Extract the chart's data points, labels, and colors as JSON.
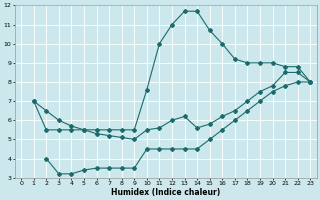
{
  "xlabel": "Humidex (Indice chaleur)",
  "xlim": [
    -0.5,
    23.5
  ],
  "ylim": [
    3,
    12
  ],
  "xticks": [
    0,
    1,
    2,
    3,
    4,
    5,
    6,
    7,
    8,
    9,
    10,
    11,
    12,
    13,
    14,
    15,
    16,
    17,
    18,
    19,
    20,
    21,
    22,
    23
  ],
  "yticks": [
    3,
    4,
    5,
    6,
    7,
    8,
    9,
    10,
    11,
    12
  ],
  "bg_color": "#cce8ec",
  "line_color": "#1a6b6b",
  "line1_x": [
    1,
    2,
    3,
    4,
    5,
    6,
    7,
    8,
    9,
    10,
    11,
    12,
    13,
    14,
    15,
    16,
    17,
    18,
    19,
    20,
    21,
    22,
    23
  ],
  "line1_y": [
    7.0,
    5.5,
    5.5,
    5.5,
    5.5,
    5.5,
    5.5,
    5.5,
    5.5,
    7.6,
    10.0,
    11.0,
    11.7,
    11.7,
    10.7,
    10.0,
    9.2,
    9.0,
    9.0,
    9.0,
    8.8,
    8.8,
    8.0
  ],
  "line2_x": [
    2,
    3,
    4,
    5,
    6,
    7,
    8,
    9,
    10,
    11,
    12,
    13,
    14,
    15,
    16,
    17,
    18,
    19,
    20,
    21,
    22,
    23
  ],
  "line2_y": [
    4.0,
    3.2,
    3.2,
    3.4,
    3.5,
    3.5,
    3.5,
    3.5,
    4.5,
    4.5,
    4.5,
    4.5,
    4.5,
    5.0,
    5.5,
    6.0,
    6.5,
    7.0,
    7.5,
    7.8,
    8.0,
    8.0
  ],
  "line3_x": [
    1,
    2,
    3,
    4,
    5,
    6,
    7,
    8,
    9,
    10,
    11,
    12,
    13,
    14,
    15,
    16,
    17,
    18,
    19,
    20,
    21,
    22,
    23
  ],
  "line3_y": [
    7.0,
    6.5,
    6.0,
    5.7,
    5.5,
    5.3,
    5.2,
    5.1,
    5.0,
    5.5,
    5.6,
    6.0,
    6.2,
    5.6,
    5.8,
    6.2,
    6.5,
    7.0,
    7.5,
    7.8,
    8.5,
    8.5,
    8.0
  ]
}
